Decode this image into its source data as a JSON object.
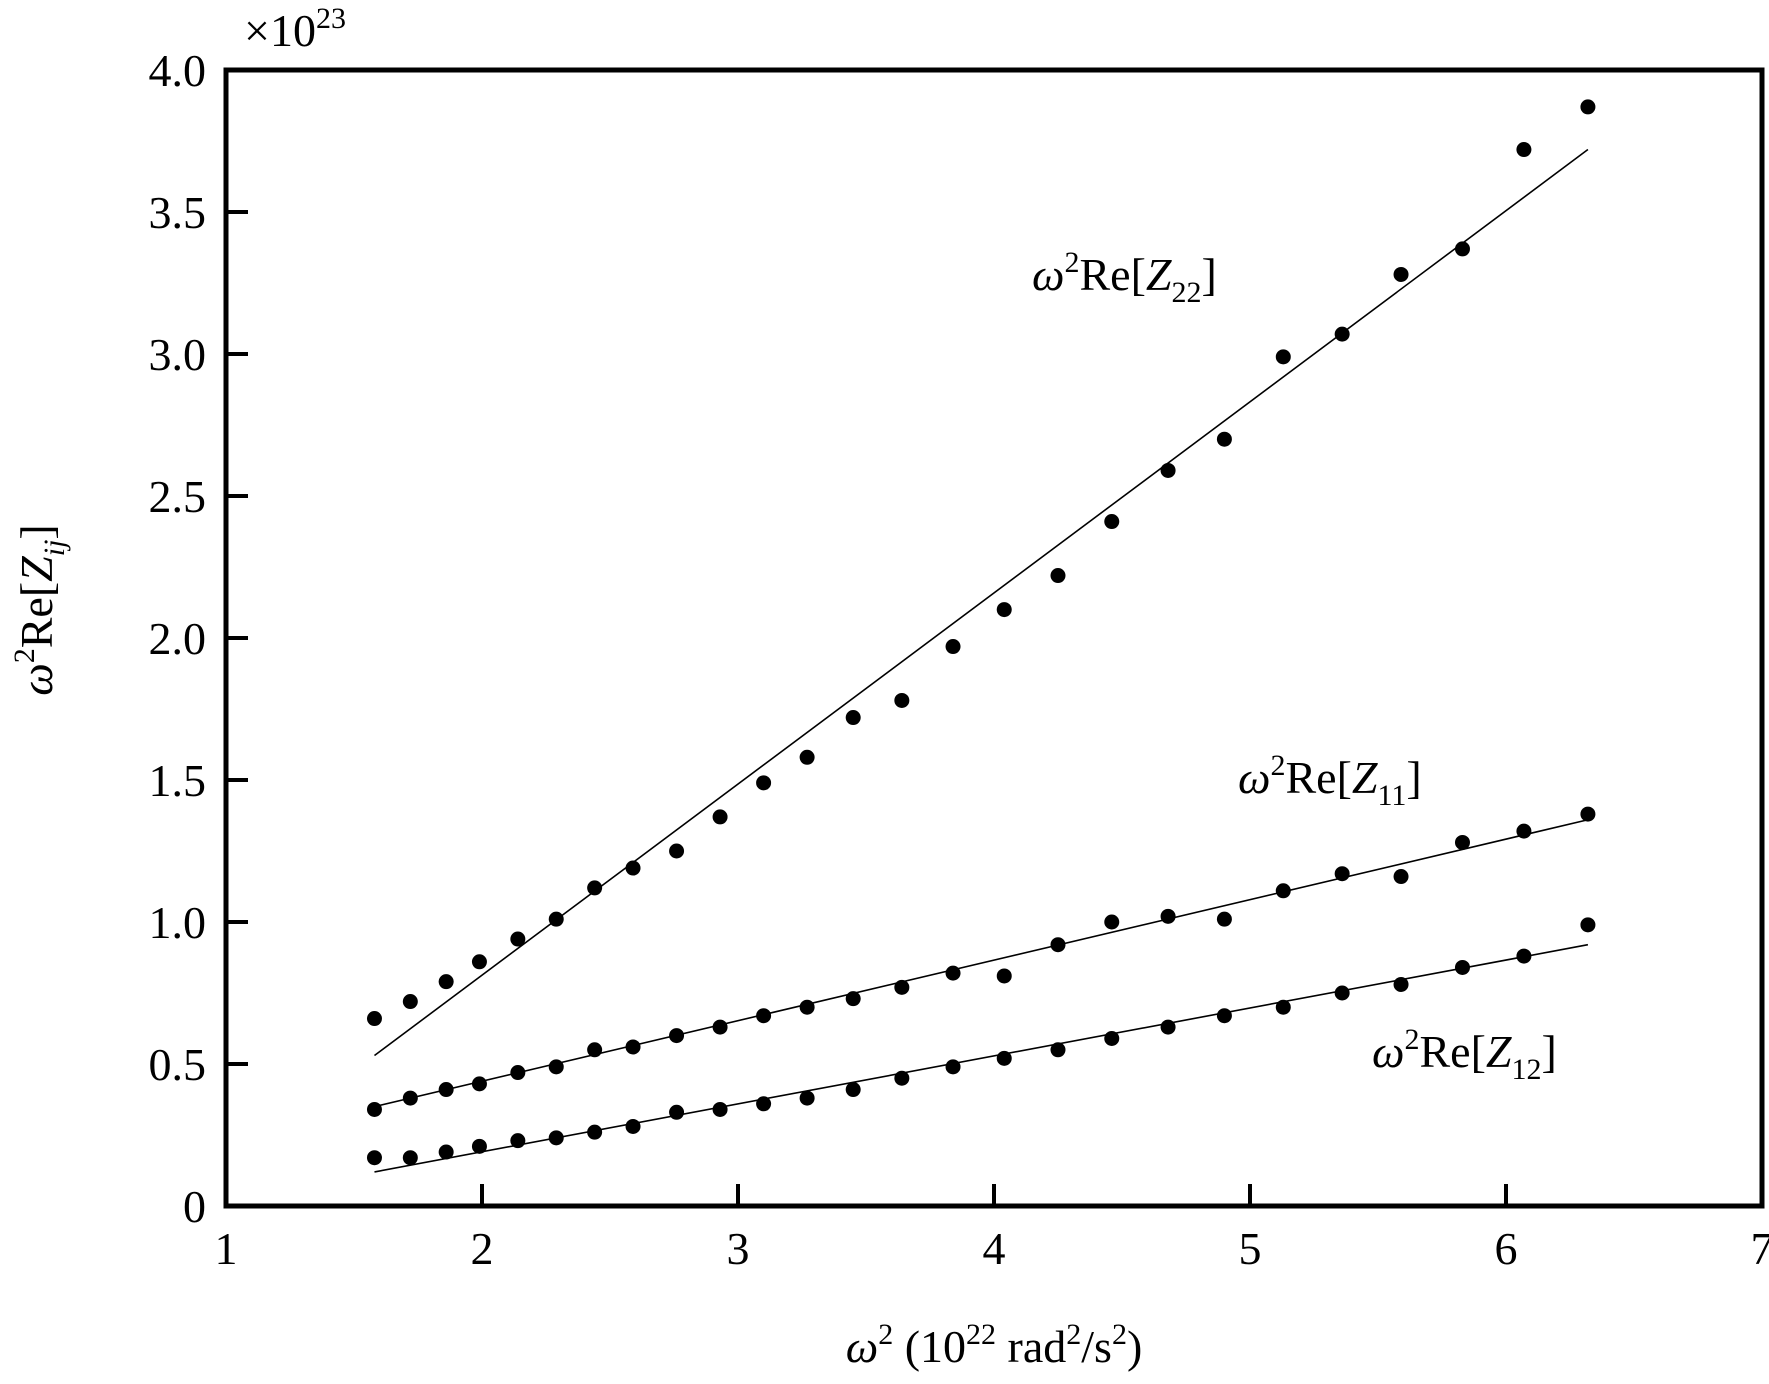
{
  "chart_data": {
    "type": "scatter",
    "title": "",
    "xlabel": {
      "sym": "ω",
      "sup": "2",
      "text": " (10",
      "exp": "22",
      "unit": " rad",
      "unit_sup": "2",
      "unit2": "/s",
      "unit2_sup": "2",
      "close": ")"
    },
    "ylabel": {
      "sym": "ω",
      "sup": "2",
      "text": "Re[",
      "var": "Z",
      "sub": "ij",
      "close": "]"
    },
    "y_multiplier": {
      "prefix": "×10",
      "exp": "23"
    },
    "xlim": [
      1,
      7
    ],
    "ylim": [
      0,
      4.0
    ],
    "x_ticks": [
      "1",
      "2",
      "3",
      "4",
      "5",
      "6",
      "7"
    ],
    "y_ticks": [
      "0",
      "0.5",
      "1.0",
      "1.5",
      "2.0",
      "2.5",
      "3.0",
      "3.5",
      "4.0"
    ],
    "grid": false,
    "series": [
      {
        "name": "Z22",
        "label": {
          "sym": "ω",
          "sup": "2",
          "text": "Re[",
          "var": "Z",
          "sub": "22",
          "close": "]"
        },
        "x": [
          1.58,
          1.72,
          1.86,
          1.99,
          2.14,
          2.29,
          2.44,
          2.59,
          2.76,
          2.93,
          3.1,
          3.27,
          3.45,
          3.64,
          3.84,
          4.04,
          4.25,
          4.46,
          4.68,
          4.9,
          5.13,
          5.36,
          5.59,
          5.83,
          6.07,
          6.32
        ],
        "y": [
          0.66,
          0.72,
          0.79,
          0.86,
          0.94,
          1.01,
          1.12,
          1.19,
          1.25,
          1.37,
          1.49,
          1.58,
          1.72,
          1.78,
          1.97,
          2.1,
          2.22,
          2.41,
          2.59,
          2.7,
          2.99,
          3.07,
          3.28,
          3.37,
          3.72,
          3.87
        ],
        "fit": {
          "x": [
            1.58,
            6.32
          ],
          "y": [
            0.53,
            3.72
          ]
        }
      },
      {
        "name": "Z11",
        "label": {
          "sym": "ω",
          "sup": "2",
          "text": "Re[",
          "var": "Z",
          "sub": "11",
          "close": "]"
        },
        "x": [
          1.58,
          1.72,
          1.86,
          1.99,
          2.14,
          2.29,
          2.44,
          2.59,
          2.76,
          2.93,
          3.1,
          3.27,
          3.45,
          3.64,
          3.84,
          4.04,
          4.25,
          4.46,
          4.68,
          4.9,
          5.13,
          5.36,
          5.59,
          5.83,
          6.07,
          6.32
        ],
        "y": [
          0.34,
          0.38,
          0.41,
          0.43,
          0.47,
          0.49,
          0.55,
          0.56,
          0.6,
          0.63,
          0.67,
          0.7,
          0.73,
          0.77,
          0.82,
          0.81,
          0.92,
          1.0,
          1.02,
          1.01,
          1.11,
          1.17,
          1.16,
          1.28,
          1.32,
          1.38
        ],
        "fit": {
          "x": [
            1.58,
            6.32
          ],
          "y": [
            0.35,
            1.36
          ]
        }
      },
      {
        "name": "Z12",
        "label": {
          "sym": "ω",
          "sup": "2",
          "text": "Re[",
          "var": "Z",
          "sub": "12",
          "close": "]"
        },
        "x": [
          1.58,
          1.72,
          1.86,
          1.99,
          2.14,
          2.29,
          2.44,
          2.59,
          2.76,
          2.93,
          3.1,
          3.27,
          3.45,
          3.64,
          3.84,
          4.04,
          4.25,
          4.46,
          4.68,
          4.9,
          5.13,
          5.36,
          5.59,
          5.83,
          6.07,
          6.32
        ],
        "y": [
          0.17,
          0.17,
          0.19,
          0.21,
          0.23,
          0.24,
          0.26,
          0.28,
          0.33,
          0.34,
          0.36,
          0.38,
          0.41,
          0.45,
          0.49,
          0.52,
          0.55,
          0.59,
          0.63,
          0.67,
          0.7,
          0.75,
          0.78,
          0.84,
          0.88,
          0.99
        ],
        "fit": {
          "x": [
            1.58,
            6.32
          ],
          "y": [
            0.12,
            0.92
          ]
        }
      }
    ],
    "colors": {
      "ink": "#000000",
      "background": "#ffffff"
    }
  }
}
